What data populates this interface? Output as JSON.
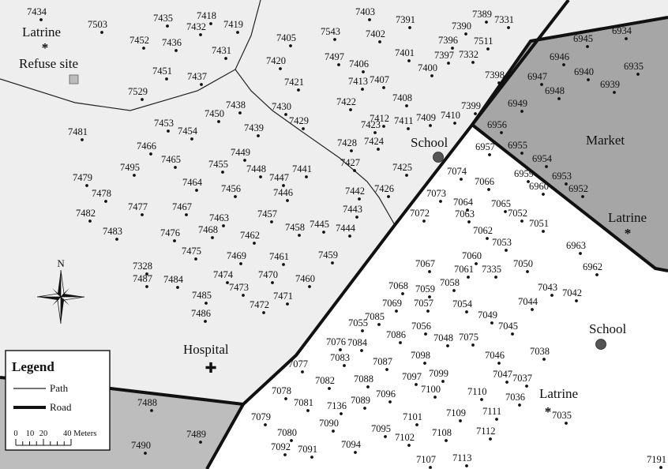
{
  "colors": {
    "light_zone": "#eeeeee",
    "market_zone": "#a6a6a6",
    "lower_left_zone": "#bdbdbd",
    "road": "#111111",
    "path": "#222222",
    "house_dot": "#111111",
    "school_marker": "#555555"
  },
  "places": {
    "latrine_nw": "Latrine",
    "refuse_site": "Refuse site",
    "school_north": "School",
    "market": "Market",
    "latrine_east": "Latrine",
    "school_east": "School",
    "hospital": "Hospital",
    "latrine_south": "Latrine"
  },
  "icons": {
    "latrine": "asterisk-icon",
    "refuse_site": "square-icon",
    "school": "filled-circle-icon",
    "hospital": "cross-icon",
    "north_arrow": "compass-rose-icon"
  },
  "north_arrow": {
    "label": "N"
  },
  "legend": {
    "title": "Legend",
    "path_label": "Path",
    "road_label": "Road",
    "scale_ticks": [
      "0",
      "10",
      "20",
      "40 Meters"
    ]
  },
  "households": [
    "7434",
    "7503",
    "7435",
    "7418",
    "7432",
    "7419",
    "7452",
    "7436",
    "7431",
    "7451",
    "7437",
    "7529",
    "7403",
    "7391",
    "7389",
    "7331",
    "7390",
    "7543",
    "7402",
    "7405",
    "7396",
    "7511",
    "7401",
    "7397",
    "7332",
    "7497",
    "7420",
    "7406",
    "7400",
    "7398",
    "7421",
    "7413",
    "7407",
    "7422",
    "7408",
    "7399",
    "7430",
    "7429",
    "7423",
    "7412",
    "7411",
    "7409",
    "7410",
    "7428",
    "7424",
    "7427",
    "7425",
    "7426",
    "7438",
    "7450",
    "7453",
    "7454",
    "7439",
    "7481",
    "7466",
    "7465",
    "7495",
    "7449",
    "7455",
    "7448",
    "7447",
    "7441",
    "7479",
    "7464",
    "7456",
    "7478",
    "7446",
    "7442",
    "7443",
    "7482",
    "7477",
    "7467",
    "7463",
    "7457",
    "7445",
    "7444",
    "7458",
    "7483",
    "7476",
    "7468",
    "7462",
    "7475",
    "7469",
    "7461",
    "7459",
    "7328",
    "7487",
    "7484",
    "7474",
    "7470",
    "7460",
    "7473",
    "7471",
    "7485",
    "7472",
    "7486",
    "7488",
    "7490",
    "7489",
    "6934",
    "6945",
    "6946",
    "6940",
    "6935",
    "6947",
    "6939",
    "6948",
    "6949",
    "6956",
    "6957",
    "6955",
    "6954",
    "6959",
    "6953",
    "6960",
    "6952",
    "7074",
    "7066",
    "7073",
    "7064",
    "7065",
    "7063",
    "7052",
    "7051",
    "7072",
    "7062",
    "7053",
    "7060",
    "7061",
    "7335",
    "7050",
    "6963",
    "6962",
    "7067",
    "7068",
    "7059",
    "7058",
    "7069",
    "7057",
    "7054",
    "7043",
    "7042",
    "7044",
    "7085",
    "7049",
    "7056",
    "7045",
    "7086",
    "7055",
    "7048",
    "7075",
    "7076",
    "7084",
    "7098",
    "7046",
    "7038",
    "7083",
    "7087",
    "7099",
    "7077",
    "7097",
    "7047",
    "7037",
    "7082",
    "7088",
    "7100",
    "7110",
    "7036",
    "7078",
    "7081",
    "7136",
    "7089",
    "7096",
    "7111",
    "7090",
    "7109",
    "7035",
    "7079",
    "7101",
    "7095",
    "7112",
    "7080",
    "7102",
    "7108",
    "7092",
    "7091",
    "7094",
    "7107",
    "7113",
    "7191"
  ]
}
